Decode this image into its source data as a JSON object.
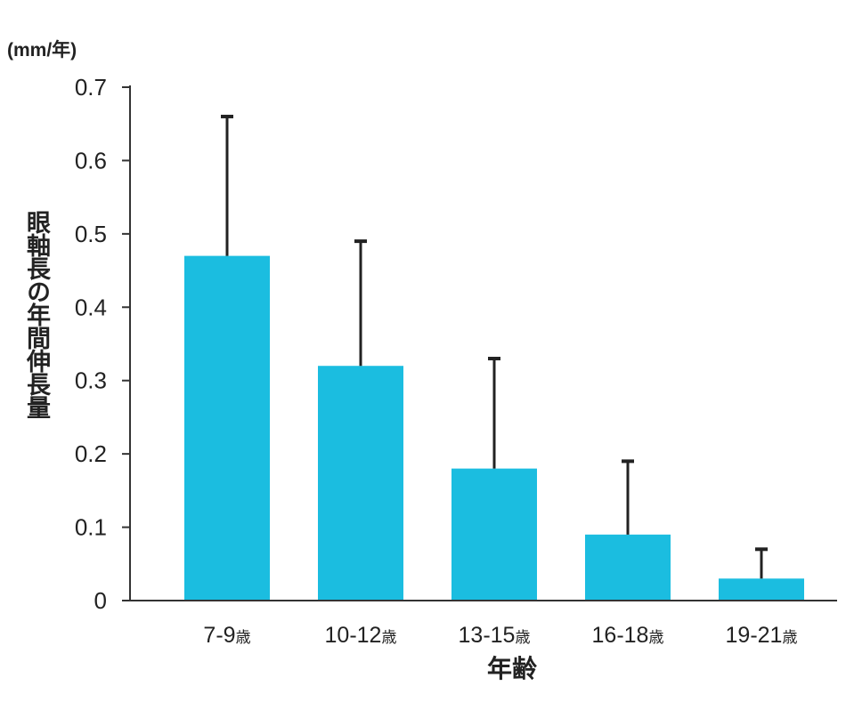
{
  "chart_data": {
    "type": "bar",
    "unit_label": "(mm/年)",
    "ylabel": "眼軸長の年間伸長量",
    "xlabel": "年齢",
    "ylim": [
      0,
      0.7
    ],
    "yticks": [
      0,
      0.1,
      0.2,
      0.3,
      0.4,
      0.5,
      0.6,
      0.7
    ],
    "ytick_labels": [
      "0",
      "0.1",
      "0.2",
      "0.3",
      "0.4",
      "0.5",
      "0.6",
      "0.7"
    ],
    "categories": [
      {
        "range": "7-9",
        "suffix": "歳"
      },
      {
        "range": "10-12",
        "suffix": "歳"
      },
      {
        "range": "13-15",
        "suffix": "歳"
      },
      {
        "range": "16-18",
        "suffix": "歳"
      },
      {
        "range": "19-21",
        "suffix": "歳"
      }
    ],
    "values": [
      0.47,
      0.32,
      0.18,
      0.09,
      0.03
    ],
    "error_upper": [
      0.66,
      0.49,
      0.33,
      0.19,
      0.07
    ],
    "bar_color": "#1bbde0",
    "grid": false,
    "legend": "none"
  }
}
